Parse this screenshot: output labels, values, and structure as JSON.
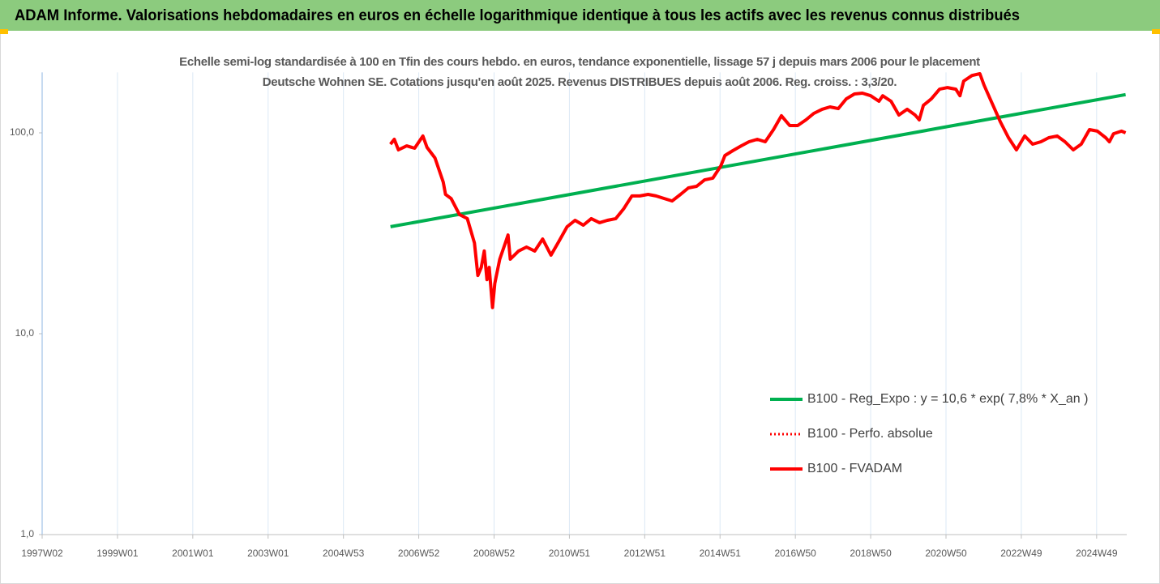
{
  "chart_data": {
    "type": "line",
    "title": "ADAM Informe. Valorisations hebdomadaires en euros en échelle logarithmique identique à tous les actifs avec les revenus connus distribués",
    "subtitle": "Echelle semi-log standardisée à 100 en Tfin des cours hebdo. en euros, tendance exponentielle, lissage 57 j depuis mars 2006 pour le placement Deutsche Wohnen SE. Cotations jusqu'en août 2025. Revenus DISTRIBUES depuis août 2006. Reg. croiss. : 3,3/20.",
    "log_scale": true,
    "grid": true,
    "legend": "right",
    "xlim": [
      1997.0,
      2025.8
    ],
    "xticks": [
      {
        "value": 1997,
        "label": "1997W02"
      },
      {
        "value": 1999,
        "label": "1999W01"
      },
      {
        "value": 2001,
        "label": "2001W01"
      },
      {
        "value": 2003,
        "label": "2003W01"
      },
      {
        "value": 2005,
        "label": "2004W53"
      },
      {
        "value": 2007,
        "label": "2006W52"
      },
      {
        "value": 2009,
        "label": "2008W52"
      },
      {
        "value": 2011,
        "label": "2010W51"
      },
      {
        "value": 2013,
        "label": "2012W51"
      },
      {
        "value": 2015,
        "label": "2014W51"
      },
      {
        "value": 2017,
        "label": "2016W50"
      },
      {
        "value": 2019,
        "label": "2018W50"
      },
      {
        "value": 2021,
        "label": "2020W50"
      },
      {
        "value": 2023,
        "label": "2022W49"
      },
      {
        "value": 2025,
        "label": "2024W49"
      }
    ],
    "ylim": [
      1,
      200
    ],
    "yticks": [
      {
        "value": 1,
        "label": "1,0"
      },
      {
        "value": 10,
        "label": "10,0"
      },
      {
        "value": 100,
        "label": "100,0"
      }
    ],
    "series": [
      {
        "name": "B100 - Reg_Expo : y = 10,6 * exp( 7,8% *  X_an )",
        "color": "#00b050",
        "style": "solid",
        "x": [
          2006.25,
          2025.77
        ],
        "values": [
          34.1,
          155
        ]
      },
      {
        "name": "B100 - Perfo. absolue",
        "color": "#ff0000",
        "style": "dotted",
        "x": [
          2006.25,
          2006.35,
          2006.46,
          2006.68,
          2006.89,
          2007.11,
          2007.22,
          2007.43,
          2007.65,
          2007.71,
          2007.86,
          2008.08,
          2008.29,
          2008.48,
          2008.57,
          2008.66,
          2008.74,
          2008.81,
          2008.87,
          2008.96,
          2009.02,
          2009.15,
          2009.3,
          2009.37,
          2009.43,
          2009.65,
          2009.86,
          2010.08,
          2010.29,
          2010.51,
          2010.72,
          2010.94,
          2011.15,
          2011.37,
          2011.58,
          2011.8,
          2012.01,
          2012.23,
          2012.44,
          2012.66,
          2012.87,
          2013.09,
          2013.3,
          2013.52,
          2013.73,
          2013.95,
          2014.16,
          2014.38,
          2014.59,
          2014.81,
          2015.02,
          2015.13,
          2015.34,
          2015.56,
          2015.77,
          2015.99,
          2016.2,
          2016.42,
          2016.63,
          2016.85,
          2017.06,
          2017.28,
          2017.49,
          2017.71,
          2017.92,
          2018.14,
          2018.35,
          2018.57,
          2018.78,
          2019.0,
          2019.22,
          2019.32,
          2019.54,
          2019.75,
          2019.97,
          2020.18,
          2020.29,
          2020.4,
          2020.61,
          2020.83,
          2021.04,
          2021.26,
          2021.37,
          2021.47,
          2021.69,
          2021.9,
          2022.01,
          2022.23,
          2022.44,
          2022.66,
          2022.87,
          2023.09,
          2023.3,
          2023.52,
          2023.73,
          2023.95,
          2024.16,
          2024.38,
          2024.59,
          2024.81,
          2025.02,
          2025.24,
          2025.34,
          2025.45,
          2025.66,
          2025.77
        ],
        "values": [
          87.8,
          92.8,
          82.3,
          86.1,
          83.8,
          96.4,
          84.6,
          75.0,
          56.8,
          49.4,
          47.1,
          39.2,
          37.4,
          28.3,
          19.5,
          21.4,
          25.8,
          18.6,
          21.4,
          13.5,
          17.8,
          23.5,
          28.3,
          31.0,
          23.5,
          25.8,
          27.0,
          25.8,
          29.6,
          24.6,
          28.8,
          34.1,
          36.7,
          34.7,
          37.4,
          35.7,
          36.7,
          37.4,
          41.8,
          48.5,
          48.5,
          49.4,
          48.5,
          47.1,
          45.8,
          49.4,
          53.2,
          54.2,
          58.3,
          59.5,
          68.4,
          77.1,
          81.5,
          86.1,
          90.3,
          92.8,
          90.3,
          103.8,
          121.6,
          108.7,
          108.7,
          116,
          125,
          131,
          134.6,
          132,
          147.6,
          156.2,
          157.6,
          153,
          143.6,
          153,
          143.6,
          122.7,
          131,
          122.7,
          116,
          137,
          147.6,
          165,
          168,
          165,
          153,
          181,
          193,
          197,
          173,
          139.7,
          113.8,
          94.6,
          82.3,
          96.4,
          87.8,
          90.3,
          94.6,
          96.4,
          90.3,
          82.3,
          87.8,
          103.8,
          102,
          94.6,
          90.3,
          99,
          102,
          100
        ]
      },
      {
        "name": "B100 - FVADAM",
        "color": "#ff0000",
        "style": "solid",
        "x": [
          2006.25,
          2006.35,
          2006.46,
          2006.68,
          2006.89,
          2007.11,
          2007.22,
          2007.43,
          2007.65,
          2007.71,
          2007.86,
          2008.08,
          2008.29,
          2008.48,
          2008.57,
          2008.66,
          2008.74,
          2008.81,
          2008.87,
          2008.96,
          2009.02,
          2009.15,
          2009.3,
          2009.37,
          2009.43,
          2009.65,
          2009.86,
          2010.08,
          2010.29,
          2010.51,
          2010.72,
          2010.94,
          2011.15,
          2011.37,
          2011.58,
          2011.8,
          2012.01,
          2012.23,
          2012.44,
          2012.66,
          2012.87,
          2013.09,
          2013.3,
          2013.52,
          2013.73,
          2013.95,
          2014.16,
          2014.38,
          2014.59,
          2014.81,
          2015.02,
          2015.13,
          2015.34,
          2015.56,
          2015.77,
          2015.99,
          2016.2,
          2016.42,
          2016.63,
          2016.85,
          2017.06,
          2017.28,
          2017.49,
          2017.71,
          2017.92,
          2018.14,
          2018.35,
          2018.57,
          2018.78,
          2019.0,
          2019.22,
          2019.32,
          2019.54,
          2019.75,
          2019.97,
          2020.18,
          2020.29,
          2020.4,
          2020.61,
          2020.83,
          2021.04,
          2021.26,
          2021.37,
          2021.47,
          2021.69,
          2021.9,
          2022.01,
          2022.23,
          2022.44,
          2022.66,
          2022.87,
          2023.09,
          2023.3,
          2023.52,
          2023.73,
          2023.95,
          2024.16,
          2024.38,
          2024.59,
          2024.81,
          2025.02,
          2025.24,
          2025.34,
          2025.45,
          2025.66,
          2025.77
        ],
        "values": [
          87.8,
          92.8,
          82.3,
          86.1,
          83.8,
          96.4,
          84.6,
          75.0,
          56.8,
          49.4,
          47.1,
          39.2,
          37.4,
          28.3,
          19.5,
          21.4,
          25.8,
          18.6,
          21.4,
          13.5,
          17.8,
          23.5,
          28.3,
          31.0,
          23.5,
          25.8,
          27.0,
          25.8,
          29.6,
          24.6,
          28.8,
          34.1,
          36.7,
          34.7,
          37.4,
          35.7,
          36.7,
          37.4,
          41.8,
          48.5,
          48.5,
          49.4,
          48.5,
          47.1,
          45.8,
          49.4,
          53.2,
          54.2,
          58.3,
          59.5,
          68.4,
          77.1,
          81.5,
          86.1,
          90.3,
          92.8,
          90.3,
          103.8,
          121.6,
          108.7,
          108.7,
          116,
          125,
          131,
          134.6,
          132,
          147.6,
          156.2,
          157.6,
          153,
          143.6,
          153,
          143.6,
          122.7,
          131,
          122.7,
          116,
          137,
          147.6,
          165,
          168,
          165,
          153,
          181,
          193,
          197,
          173,
          139.7,
          113.8,
          94.6,
          82.3,
          96.4,
          87.8,
          90.3,
          94.6,
          96.4,
          90.3,
          82.3,
          87.8,
          103.8,
          102,
          94.6,
          90.3,
          99,
          102,
          100
        ]
      }
    ]
  }
}
